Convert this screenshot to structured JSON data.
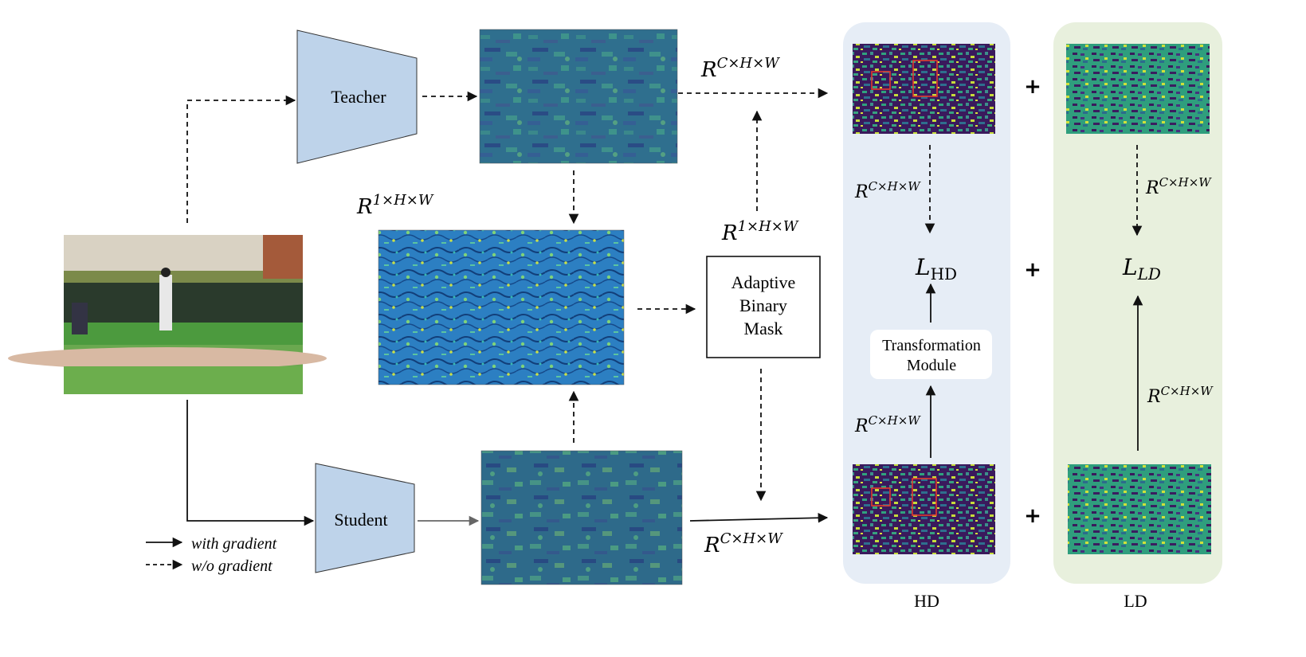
{
  "nodes": {
    "teacher": "Teacher",
    "student": "Student",
    "abm_line1": "Adaptive",
    "abm_line2": "Binary",
    "abm_line3": "Mask",
    "tm_line1": "Transformation",
    "tm_line2": "Module"
  },
  "dims": {
    "base_r": "R",
    "chw": "C×H×W",
    "one_hw": "1×H×W"
  },
  "losses": {
    "hd_base": "L",
    "hd_sub": "HD",
    "ld_base": "L",
    "ld_sub": "LD"
  },
  "operators": {
    "plus": "+"
  },
  "panels": {
    "hd": "HD",
    "ld": "LD"
  },
  "legend": {
    "solid": "with gradient",
    "dashed": "w/o gradient"
  },
  "colors": {
    "hd_panel": "#e6edf6",
    "ld_panel": "#e8f0dd",
    "network": "#bed3ea",
    "bbox": "#e23b2e"
  }
}
